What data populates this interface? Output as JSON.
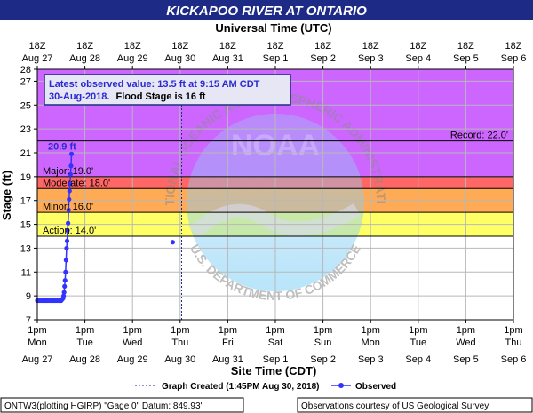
{
  "chart_data": {
    "type": "line",
    "title": "KICKAPOO RIVER AT ONTARIO",
    "top_axis_title": "Universal Time (UTC)",
    "bottom_axis_title": "Site Time (CDT)",
    "ylabel": "Stage (ft)",
    "ylim": [
      7,
      28
    ],
    "y_ticks": [
      7,
      9,
      11,
      13,
      15,
      17,
      19,
      21,
      23,
      25,
      27,
      28
    ],
    "xlim": [
      "2018-08-27 13:00 CDT",
      "2018-09-06 13:00 CDT"
    ],
    "grid": true,
    "top_ticks": [
      {
        "time": "18Z",
        "date": "Aug 27"
      },
      {
        "time": "18Z",
        "date": "Aug 28"
      },
      {
        "time": "18Z",
        "date": "Aug 29"
      },
      {
        "time": "18Z",
        "date": "Aug 30"
      },
      {
        "time": "18Z",
        "date": "Aug 31"
      },
      {
        "time": "18Z",
        "date": "Sep 1"
      },
      {
        "time": "18Z",
        "date": "Sep 2"
      },
      {
        "time": "18Z",
        "date": "Sep 3"
      },
      {
        "time": "18Z",
        "date": "Sep 4"
      },
      {
        "time": "18Z",
        "date": "Sep 5"
      },
      {
        "time": "18Z",
        "date": "Sep 6"
      }
    ],
    "bottom_ticks": [
      {
        "time": "1pm",
        "day": "Mon",
        "date": "Aug 27"
      },
      {
        "time": "1pm",
        "day": "Tue",
        "date": "Aug 28"
      },
      {
        "time": "1pm",
        "day": "Wed",
        "date": "Aug 29"
      },
      {
        "time": "1pm",
        "day": "Thu",
        "date": "Aug 30"
      },
      {
        "time": "1pm",
        "day": "Fri",
        "date": "Aug 31"
      },
      {
        "time": "1pm",
        "day": "Sat",
        "date": "Sep 1"
      },
      {
        "time": "1pm",
        "day": "Sun",
        "date": "Sep 2"
      },
      {
        "time": "1pm",
        "day": "Mon",
        "date": "Sep 3"
      },
      {
        "time": "1pm",
        "day": "Tue",
        "date": "Sep 4"
      },
      {
        "time": "1pm",
        "day": "Wed",
        "date": "Sep 5"
      },
      {
        "time": "1pm",
        "day": "Thu",
        "date": "Sep 6"
      }
    ],
    "flood_categories": [
      {
        "name": "Record",
        "label": "Record: 22.0'",
        "value": 22.0,
        "color": "#cc66ff"
      },
      {
        "name": "Major",
        "label": "Major: 19.0'",
        "value": 19.0,
        "color": "#ff6666"
      },
      {
        "name": "Moderate",
        "label": "Moderate: 18.0'",
        "value": 18.0,
        "color": "#ffaa55"
      },
      {
        "name": "Minor",
        "label": "Minor: 16.0'",
        "value": 16.0,
        "color": "#ffcc66"
      },
      {
        "name": "Action",
        "label": "Action: 14.0'",
        "value": 14.0,
        "color": "#ffff66"
      }
    ],
    "graph_created": "2018-08-30 13:45 CDT",
    "series": [
      {
        "name": "Observed",
        "color": "#3333ff",
        "points": [
          [
            "2018-08-27 13:00",
            8.6
          ],
          [
            "2018-08-27 14:00",
            8.6
          ],
          [
            "2018-08-27 15:00",
            8.6
          ],
          [
            "2018-08-27 16:00",
            8.6
          ],
          [
            "2018-08-27 17:00",
            8.6
          ],
          [
            "2018-08-27 18:00",
            8.6
          ],
          [
            "2018-08-27 19:00",
            8.6
          ],
          [
            "2018-08-27 20:00",
            8.6
          ],
          [
            "2018-08-27 21:00",
            8.6
          ],
          [
            "2018-08-27 22:00",
            8.6
          ],
          [
            "2018-08-27 23:00",
            8.6
          ],
          [
            "2018-08-28 00:00",
            8.6
          ],
          [
            "2018-08-28 01:00",
            8.6
          ],
          [
            "2018-08-28 01:30",
            8.7
          ],
          [
            "2018-08-28 02:00",
            8.8
          ],
          [
            "2018-08-28 02:15",
            9.0
          ],
          [
            "2018-08-28 02:30",
            9.3
          ],
          [
            "2018-08-28 02:45",
            9.8
          ],
          [
            "2018-08-28 03:00",
            10.3
          ],
          [
            "2018-08-28 03:15",
            11.0
          ],
          [
            "2018-08-28 03:30",
            12.0
          ],
          [
            "2018-08-28 03:45",
            13.0
          ],
          [
            "2018-08-28 04:00",
            13.6
          ],
          [
            "2018-08-28 04:15",
            14.5
          ],
          [
            "2018-08-28 04:30",
            15.1
          ],
          [
            "2018-08-28 04:45",
            16.2
          ],
          [
            "2018-08-28 05:00",
            17.1
          ],
          [
            "2018-08-28 05:15",
            17.8
          ],
          [
            "2018-08-28 05:30",
            18.4
          ],
          [
            "2018-08-28 05:45",
            19.2
          ],
          [
            "2018-08-28 06:00",
            19.9
          ],
          [
            "2018-08-28 06:15",
            20.9
          ],
          [
            "2018-08-30 09:15",
            13.5
          ]
        ]
      }
    ],
    "peak_label": "20.9 ft",
    "info_box_line1": "Latest observed value: 13.5 ft at 9:15 AM CDT",
    "info_box_line2a": "30-Aug-2018.",
    "info_box_line2b": "Flood Stage is 16 ft",
    "legend": {
      "graph_created": "Graph Created (1:45PM Aug 30, 2018)",
      "observed": "Observed"
    },
    "watermark_text": {
      "top": "NATIONAL OCEANIC AND ATMOSPHERIC ADMINISTRATION",
      "bottom": "U.S. DEPARTMENT OF COMMERCE",
      "logo": "NOAA"
    },
    "footer": {
      "left": "ONTW3(plotting HGIRP) \"Gage 0\" Datum: 849.93'",
      "right": "Observations courtesy of US Geological Survey"
    }
  }
}
